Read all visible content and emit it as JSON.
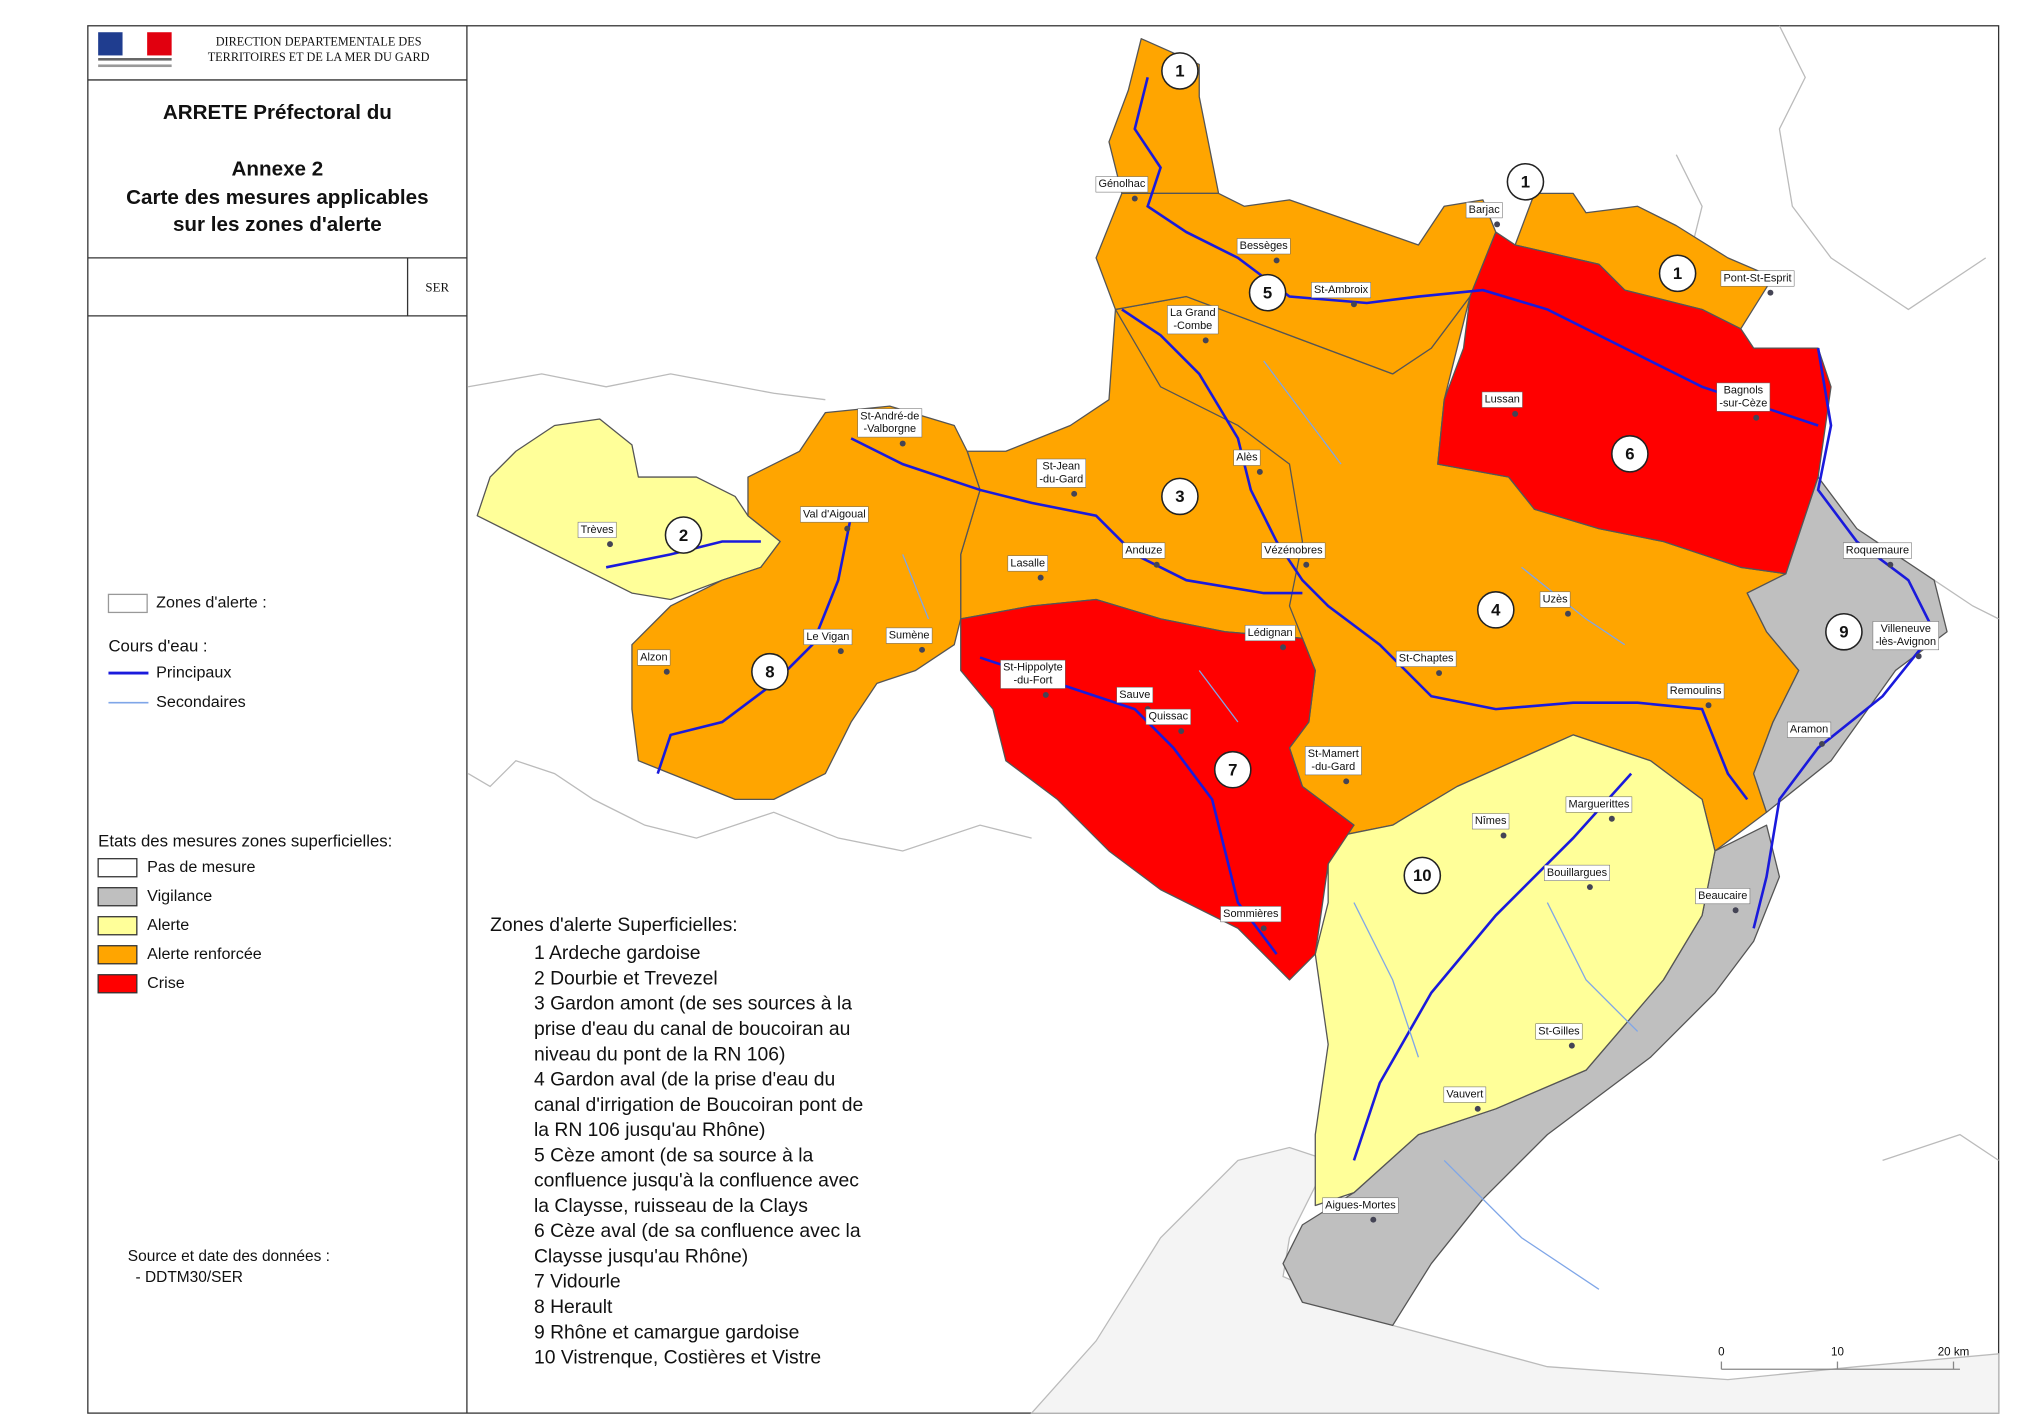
{
  "header": {
    "agency": [
      "DIRECTION DEPARTEMENTALE DES",
      "TERRITOIRES ET DE LA MER DU GARD"
    ],
    "title": [
      "ARRETE Préfectoral du",
      "Annexe 2",
      "Carte des mesures applicables",
      "sur les zones d'alerte"
    ],
    "service": "SER"
  },
  "legend": {
    "zones_label": "Zones d'alerte :",
    "rivers_title": "Cours d'eau :",
    "rivers": [
      {
        "label": "Principaux",
        "color": "#1a1adc"
      },
      {
        "label": "Secondaires",
        "color": "#7fa6e8"
      }
    ],
    "states_title": "Etats des mesures zones superficielles:",
    "states": [
      {
        "label": "Pas de mesure",
        "color": "#ffffff"
      },
      {
        "label": "Vigilance",
        "color": "#bfbfbf"
      },
      {
        "label": "Alerte",
        "color": "#ffff99"
      },
      {
        "label": "Alerte renforcée",
        "color": "#ffa500"
      },
      {
        "label": "Crise",
        "color": "#ff0000"
      }
    ]
  },
  "zone_list": {
    "title": "Zones d'alerte Superficielles:",
    "lines": [
      "1 Ardeche gardoise",
      "2 Dourbie et Trevezel",
      "3 Gardon amont (de ses sources à la",
      "prise d'eau du canal de boucoiran au",
      "niveau du pont de la RN 106)",
      "4 Gardon aval (de la prise d'eau du",
      "canal d'irrigation de Boucoiran pont de",
      "la RN 106 jusqu'au Rhône)",
      "5 Cèze amont (de sa source à la",
      "confluence jusqu'à la confluence avec",
      " la Claysse, ruisseau de la Clays",
      "6 Cèze aval (de sa confluence avec la",
      "Claysse jusqu'au Rhône)",
      "7 Vidourle",
      "8 Herault",
      "9 Rhône et camargue gardoise",
      "10 Vistrenque, Costières et Vistre"
    ]
  },
  "source": [
    "Source et date des données :",
    "- DDTM30/SER"
  ],
  "towns": [
    [
      "Génolhac"
    ],
    [
      "Bessèges"
    ],
    [
      "Barjac"
    ],
    [
      "St-Ambroix"
    ],
    [
      "Pont-St-Esprit"
    ],
    [
      "La Grand",
      "-Combe"
    ],
    [
      "Lussan"
    ],
    [
      "Bagnols",
      "-sur-Cèze"
    ],
    [
      "St-André-de",
      "-Valborgne"
    ],
    [
      "St-Jean",
      "-du-Gard"
    ],
    [
      "Alès"
    ],
    [
      "Trèves"
    ],
    [
      "Val d'Aigoual"
    ],
    [
      "Anduze"
    ],
    [
      "Vézénobres"
    ],
    [
      "Lasalle"
    ],
    [
      "Roquemaure"
    ],
    [
      "Uzès"
    ],
    [
      "Villeneuve",
      "-lès-Avignon"
    ],
    [
      "Le Vigan"
    ],
    [
      "Sumène"
    ],
    [
      "Alzon"
    ],
    [
      "Lédignan"
    ],
    [
      "St-Chaptes"
    ],
    [
      "St-Hippolyte",
      "-du-Fort"
    ],
    [
      "Sauve"
    ],
    [
      "Remoulins"
    ],
    [
      "Quissac"
    ],
    [
      "Aramon"
    ],
    [
      "St-Mamert",
      "-du-Gard"
    ],
    [
      "Nîmes"
    ],
    [
      "Marguerittes"
    ],
    [
      "Bouillargues"
    ],
    [
      "Beaucaire"
    ],
    [
      "Sommières"
    ],
    [
      "St-Gilles"
    ],
    [
      "Vauvert"
    ],
    [
      "Aigues-Mortes"
    ]
  ],
  "zone_numbers": [
    "1",
    "1",
    "1",
    "5",
    "6",
    "3",
    "2",
    "4",
    "9",
    "8",
    "7",
    "10"
  ],
  "scale": [
    "0",
    "10",
    "20 km"
  ]
}
